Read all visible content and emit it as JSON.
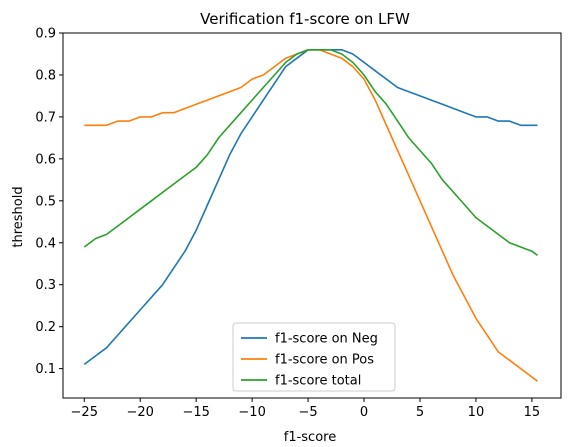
{
  "chart_data": {
    "type": "line",
    "title": "Verification f1-score on LFW",
    "xlabel": "f1-score",
    "ylabel": "threshold",
    "xlim": [
      -26.9,
      17.6
    ],
    "ylim": [
      0.03,
      0.9
    ],
    "xticks": [
      -25,
      -20,
      -15,
      -10,
      -5,
      0,
      5,
      10,
      15
    ],
    "yticks": [
      0.1,
      0.2,
      0.3,
      0.4,
      0.5,
      0.6,
      0.7,
      0.8,
      0.9
    ],
    "grid": false,
    "legend_position": "lower center",
    "x": [
      -25,
      -24,
      -23,
      -22,
      -21,
      -20,
      -19,
      -18,
      -17,
      -16,
      -15,
      -14,
      -13,
      -12,
      -11,
      -10,
      -9,
      -8,
      -7,
      -6,
      -5,
      -4,
      -3,
      -2,
      -1,
      0,
      1,
      2,
      3,
      4,
      5,
      6,
      7,
      8,
      9,
      10,
      11,
      12,
      13,
      14,
      15,
      15.5
    ],
    "series": [
      {
        "name": "f1-score on Neg",
        "color": "#1f77b4",
        "values": [
          0.11,
          0.13,
          0.15,
          0.18,
          0.21,
          0.24,
          0.27,
          0.3,
          0.34,
          0.38,
          0.43,
          0.49,
          0.55,
          0.61,
          0.66,
          0.7,
          0.74,
          0.78,
          0.82,
          0.84,
          0.86,
          0.86,
          0.86,
          0.86,
          0.85,
          0.83,
          0.81,
          0.79,
          0.77,
          0.76,
          0.75,
          0.74,
          0.73,
          0.72,
          0.71,
          0.7,
          0.7,
          0.69,
          0.69,
          0.68,
          0.68,
          0.68
        ]
      },
      {
        "name": "f1-score on Pos",
        "color": "#ff7f0e",
        "values": [
          0.68,
          0.68,
          0.68,
          0.69,
          0.69,
          0.7,
          0.7,
          0.71,
          0.71,
          0.72,
          0.73,
          0.74,
          0.75,
          0.76,
          0.77,
          0.79,
          0.8,
          0.82,
          0.84,
          0.85,
          0.86,
          0.86,
          0.85,
          0.84,
          0.82,
          0.79,
          0.74,
          0.68,
          0.62,
          0.56,
          0.5,
          0.44,
          0.38,
          0.32,
          0.27,
          0.22,
          0.18,
          0.14,
          0.12,
          0.1,
          0.08,
          0.07
        ]
      },
      {
        "name": "f1-score total",
        "color": "#2ca02c",
        "values": [
          0.39,
          0.41,
          0.42,
          0.44,
          0.46,
          0.48,
          0.5,
          0.52,
          0.54,
          0.56,
          0.58,
          0.61,
          0.65,
          0.68,
          0.71,
          0.74,
          0.77,
          0.8,
          0.83,
          0.85,
          0.86,
          0.86,
          0.86,
          0.85,
          0.83,
          0.8,
          0.76,
          0.73,
          0.69,
          0.65,
          0.62,
          0.59,
          0.55,
          0.52,
          0.49,
          0.46,
          0.44,
          0.42,
          0.4,
          0.39,
          0.38,
          0.37
        ]
      }
    ]
  }
}
